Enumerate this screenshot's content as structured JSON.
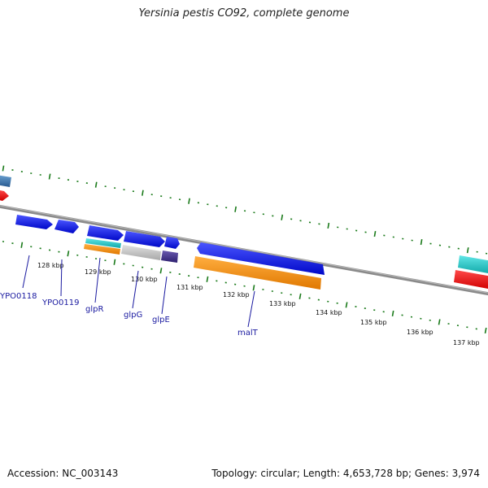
{
  "header": {
    "title": "Yersinia pestis CO92, complete genome"
  },
  "footer": {
    "accession": "Accession: NC_003143",
    "summary": "Topology: circular; Length: 4,653,728 bp; Genes: 3,974"
  },
  "ruler": {
    "labels": [
      "128 kbp",
      "129 kbp",
      "130 kbp",
      "131 kbp",
      "132 kbp",
      "133 kbp",
      "134 kbp",
      "135 kbp",
      "136 kbp",
      "137 kbp"
    ]
  },
  "genes": [
    "YPO0118",
    "YPO0119",
    "glpR",
    "glpG",
    "glpE",
    "malT"
  ],
  "colors": {
    "backbone": "#8a8a8a",
    "tick": "#1a7a1a",
    "forward_cds": "#0a14e6",
    "reverse_cds": "#ff0a0a",
    "feature_cyan": "#20c8c8",
    "feature_orange": "#ff8c0a",
    "feature_grey": "#c8c8c8",
    "feature_purple": "#4a3a90",
    "feature_steelblue": "#3c7ab4",
    "label": "#1a1aa0"
  }
}
